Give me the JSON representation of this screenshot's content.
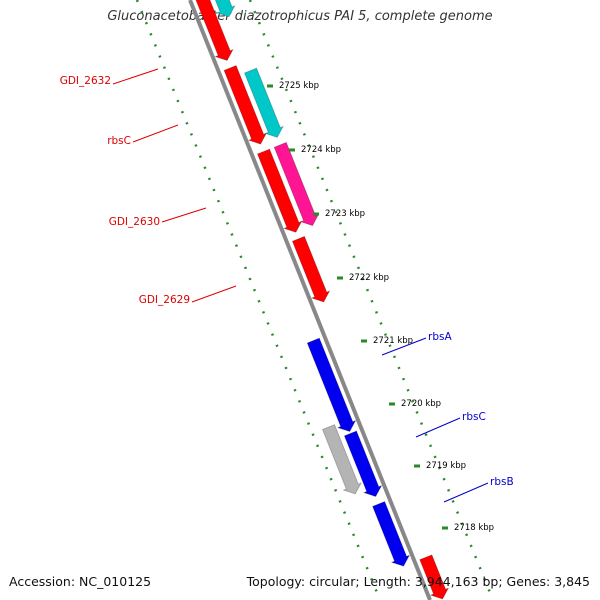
{
  "title": "Gluconacetobacter diazotrophicus PAI 5, complete genome",
  "footer": {
    "accession": "Accession: NC_010125",
    "summary": "Topology: circular; Length: 3,944,163 bp; Genes: 3,845"
  },
  "colors": {
    "background": "#ffffff",
    "backbone": "#888888",
    "tick_track": "#2a8a2a",
    "gene_red": "#ff0000",
    "gene_blue": "#0000ee",
    "gene_cyan": "#00c8c8",
    "gene_magenta": "#ff1493",
    "gene_gray": "#b4b4b4",
    "label_red": "#dd0000",
    "label_blue": "#0000cc"
  },
  "scale_ticks": [
    {
      "label": "2725 kbp"
    },
    {
      "label": "2724 kbp"
    },
    {
      "label": "2723 kbp"
    },
    {
      "label": "2722 kbp"
    },
    {
      "label": "2721 kbp"
    },
    {
      "label": "2720 kbp"
    },
    {
      "label": "2719 kbp"
    },
    {
      "label": "2718 kbp"
    }
  ],
  "gene_labels": [
    {
      "text": "GDI_2632",
      "strand": "reverse"
    },
    {
      "text": "rbsC",
      "strand": "reverse"
    },
    {
      "text": "GDI_2630",
      "strand": "reverse"
    },
    {
      "text": "GDI_2629",
      "strand": "reverse"
    },
    {
      "text": "rbsA",
      "strand": "forward"
    },
    {
      "text": "rbsC",
      "strand": "forward"
    },
    {
      "text": "rbsB",
      "strand": "forward"
    }
  ]
}
